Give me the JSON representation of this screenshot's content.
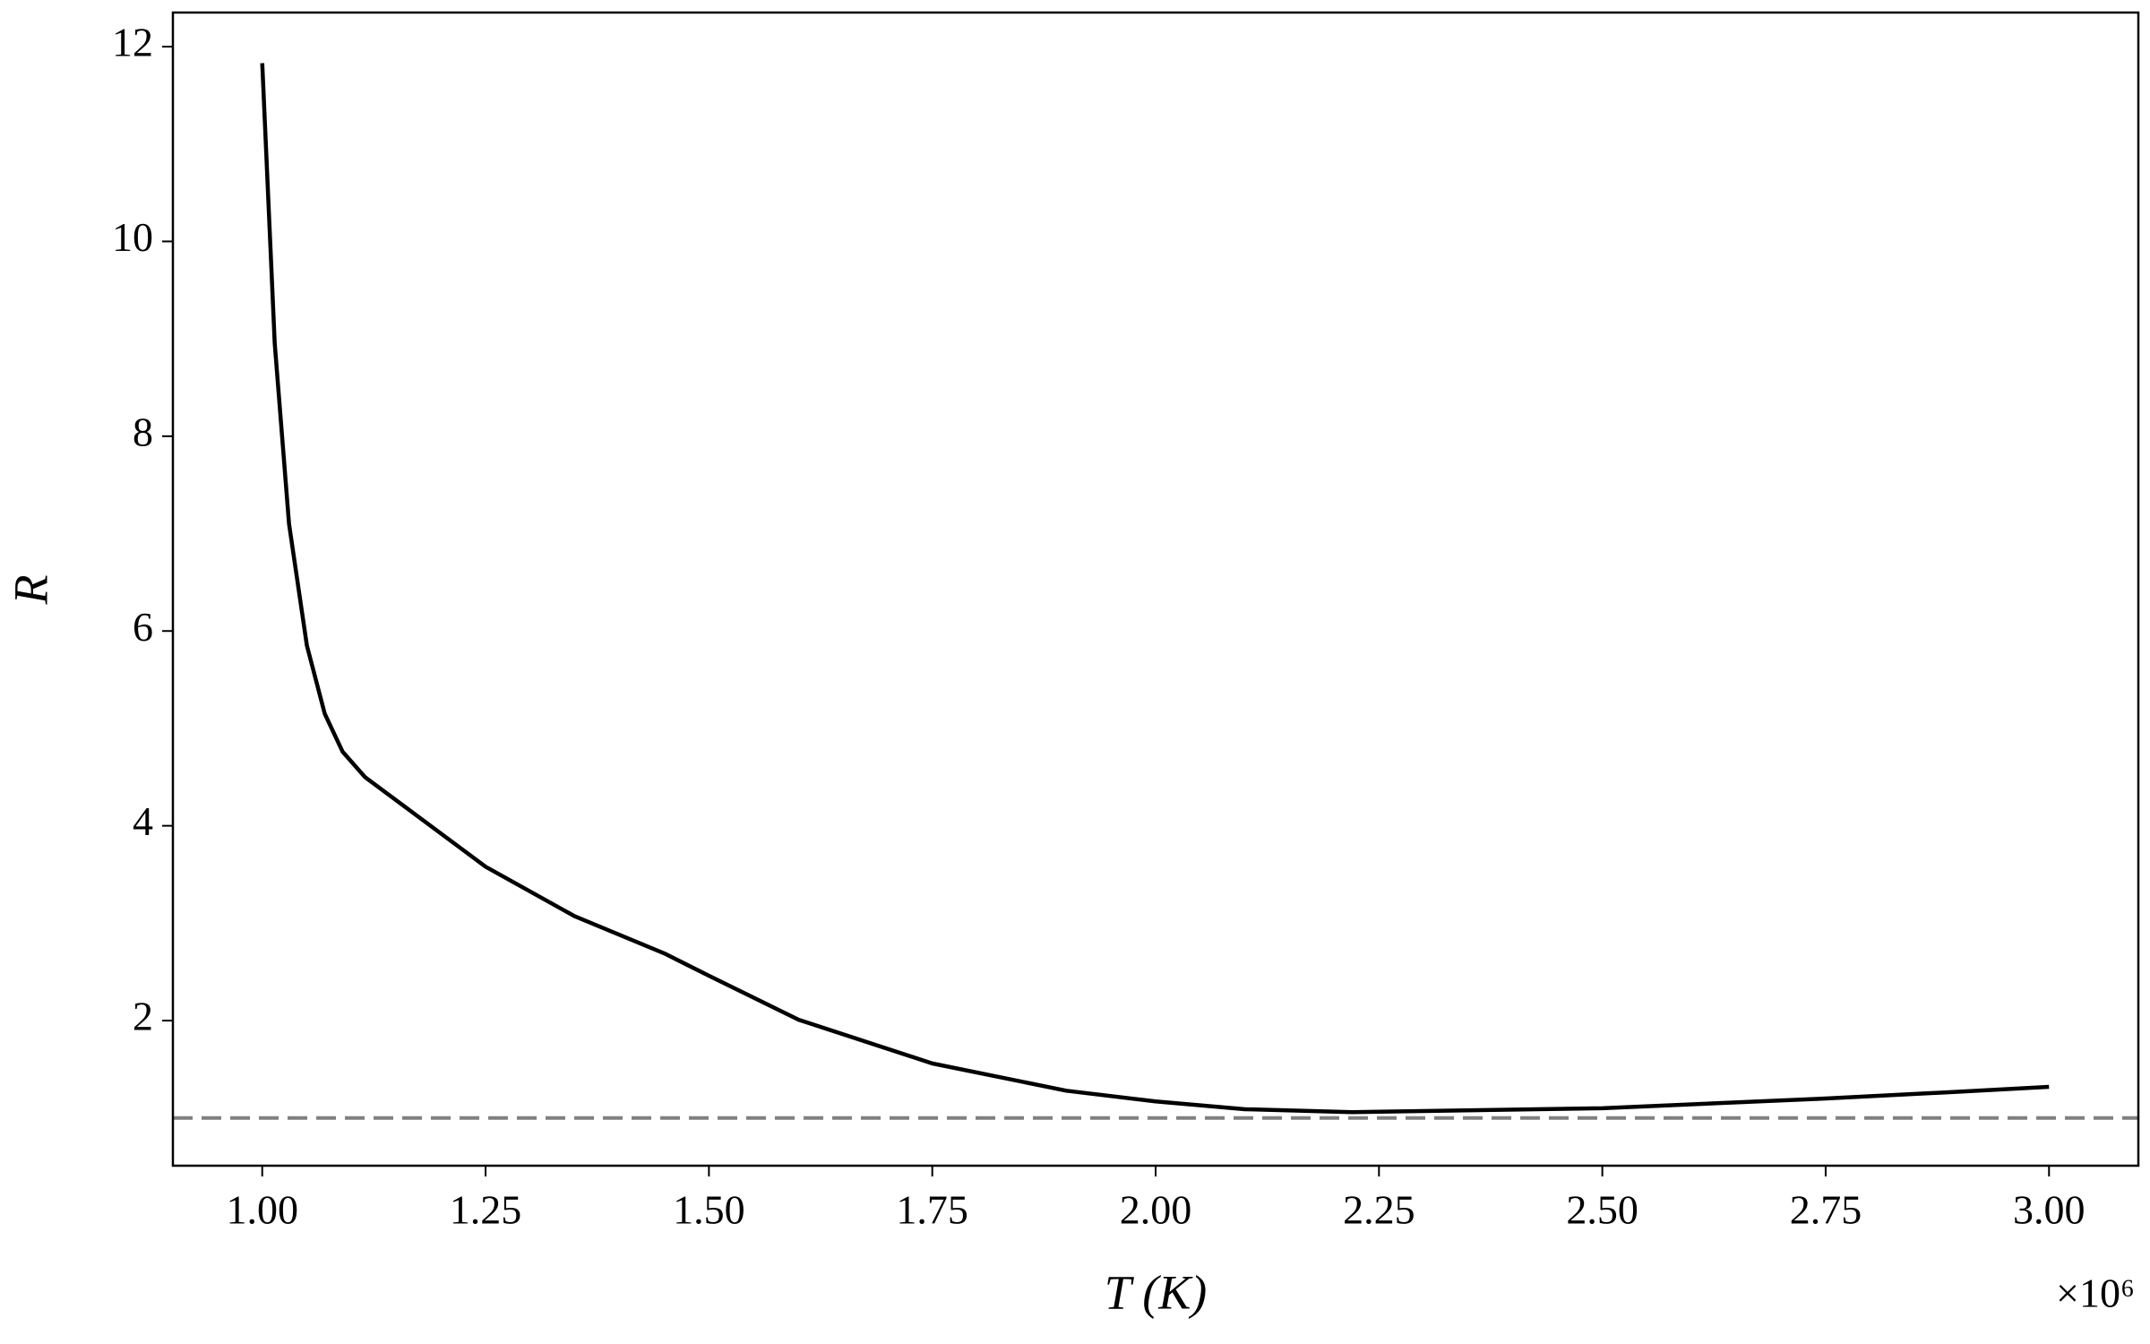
{
  "chart_data": {
    "type": "line",
    "xlabel": "T (K)",
    "ylabel": "R",
    "x_offset_label": "×10⁶",
    "x": [
      1.0,
      1.014,
      1.03,
      1.05,
      1.07,
      1.09,
      1.115,
      1.25,
      1.35,
      1.45,
      1.5,
      1.6,
      1.75,
      1.9,
      2.0,
      2.1,
      2.22,
      2.5,
      2.75,
      2.9,
      3.0
    ],
    "series": [
      {
        "color": "#000000",
        "values": [
          11.83,
          8.95,
          7.1,
          5.85,
          5.15,
          4.76,
          4.5,
          3.58,
          3.07,
          2.69,
          2.46,
          2.01,
          1.56,
          1.28,
          1.17,
          1.09,
          1.06,
          1.1,
          1.2,
          1.27,
          1.32
        ]
      }
    ],
    "hline": {
      "value": 1,
      "color": "#808080",
      "style": "dashed"
    },
    "xlim": [
      0.9,
      3.1
    ],
    "ylim": [
      0.51,
      12.35
    ],
    "xticks": [
      {
        "value": 1.0,
        "label": "1.00"
      },
      {
        "value": 1.25,
        "label": "1.25"
      },
      {
        "value": 1.5,
        "label": "1.50"
      },
      {
        "value": 1.75,
        "label": "1.75"
      },
      {
        "value": 2.0,
        "label": "2.00"
      },
      {
        "value": 2.25,
        "label": "2.25"
      },
      {
        "value": 2.5,
        "label": "2.50"
      },
      {
        "value": 2.75,
        "label": "2.75"
      },
      {
        "value": 3.0,
        "label": "3.00"
      }
    ],
    "yticks": [
      2,
      4,
      6,
      8,
      10,
      12
    ],
    "grid": false
  }
}
